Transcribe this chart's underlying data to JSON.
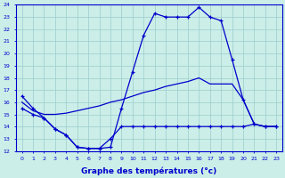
{
  "xlabel": "Graphe des températures (°c)",
  "bg_color": "#cceee8",
  "line_color": "#0000cc",
  "grid_color": "#99cccc",
  "xmin": 0,
  "xmax": 23,
  "ymin": 12,
  "ymax": 24,
  "line1_x": [
    0,
    1,
    2,
    3,
    4,
    5,
    6,
    7,
    8,
    9,
    10,
    11,
    12,
    13,
    14,
    15,
    16,
    17,
    18,
    19,
    20,
    21,
    22,
    23
  ],
  "line1_y": [
    16.5,
    15.5,
    14.7,
    13.8,
    13.3,
    12.3,
    12.2,
    12.2,
    12.3,
    15.5,
    18.5,
    21.5,
    23.3,
    23.0,
    23.0,
    23.0,
    23.8,
    23.0,
    22.7,
    19.5,
    16.2,
    14.2,
    14.0,
    14.0
  ],
  "line2_x": [
    0,
    1,
    2,
    3,
    4,
    5,
    6,
    7,
    8,
    9,
    10,
    11,
    12,
    13,
    14,
    15,
    16,
    17,
    18,
    19,
    20,
    21,
    22,
    23
  ],
  "line2_y": [
    16.0,
    15.3,
    15.0,
    15.0,
    15.1,
    15.3,
    15.5,
    15.7,
    16.0,
    16.2,
    16.5,
    16.8,
    17.0,
    17.3,
    17.5,
    17.7,
    18.0,
    17.5,
    17.5,
    17.5,
    16.2,
    14.2,
    14.0,
    14.0
  ],
  "line3_x": [
    0,
    1,
    2,
    3,
    4,
    5,
    6,
    7,
    8,
    9,
    10,
    11,
    12,
    13,
    14,
    15,
    16,
    17,
    18,
    19,
    20,
    21,
    22,
    23
  ],
  "line3_y": [
    15.5,
    15.0,
    14.7,
    13.8,
    13.3,
    12.3,
    12.2,
    12.2,
    13.0,
    14.0,
    14.0,
    14.0,
    14.0,
    14.0,
    14.0,
    14.0,
    14.0,
    14.0,
    14.0,
    14.0,
    14.0,
    14.2,
    14.0,
    14.0
  ]
}
